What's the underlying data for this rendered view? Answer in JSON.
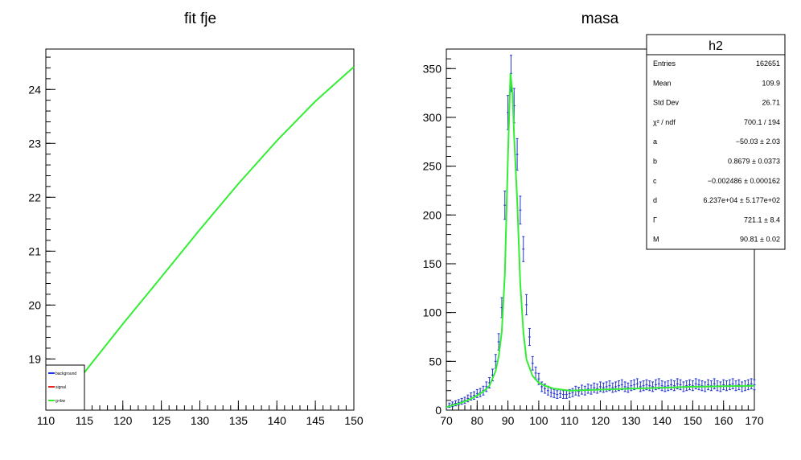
{
  "chart_data": [
    {
      "type": "line",
      "title": "fit fje",
      "xlabel": "",
      "ylabel": "",
      "xlim": [
        110,
        150
      ],
      "ylim": [
        18.05,
        24.75
      ],
      "x_ticks": [
        "110",
        "115",
        "120",
        "125",
        "130",
        "135",
        "140",
        "145",
        "150"
      ],
      "y_ticks": [
        "19",
        "20",
        "21",
        "22",
        "23",
        "24"
      ],
      "grid": false,
      "legend": {
        "position": "bottom-left",
        "entries": [
          {
            "label": "background",
            "color": "#2233ee"
          },
          {
            "label": "signal",
            "color": "#ee2222"
          },
          {
            "label": "g+bw",
            "color": "#33ee33"
          }
        ]
      },
      "series": [
        {
          "name": "g+bw",
          "color": "#33ee33",
          "x": [
            115,
            120,
            125,
            130,
            135,
            140,
            145,
            150
          ],
          "y": [
            18.75,
            19.65,
            20.52,
            21.4,
            22.25,
            23.05,
            23.78,
            24.42
          ]
        }
      ]
    },
    {
      "type": "scatter",
      "title": "masa",
      "xlabel": "",
      "ylabel": "",
      "xlim": [
        70,
        170
      ],
      "ylim": [
        0,
        370
      ],
      "x_ticks": [
        "70",
        "80",
        "90",
        "100",
        "110",
        "120",
        "130",
        "140",
        "150",
        "160",
        "170"
      ],
      "y_ticks": [
        "0",
        "50",
        "100",
        "150",
        "200",
        "250",
        "300",
        "350"
      ],
      "grid": false,
      "series": [
        {
          "name": "h2",
          "color": "#2233cc",
          "style": "error-bars",
          "x": [
            71,
            72,
            73,
            74,
            75,
            76,
            77,
            78,
            79,
            80,
            81,
            82,
            83,
            84,
            85,
            86,
            87,
            88,
            89,
            90,
            91,
            92,
            93,
            94,
            95,
            96,
            97,
            98,
            99,
            100,
            101,
            102,
            103,
            104,
            105,
            106,
            107,
            108,
            109,
            110,
            111,
            112,
            113,
            114,
            115,
            116,
            117,
            118,
            119,
            120,
            121,
            122,
            123,
            124,
            125,
            126,
            127,
            128,
            129,
            130,
            131,
            132,
            133,
            134,
            135,
            136,
            137,
            138,
            139,
            140,
            141,
            142,
            143,
            144,
            145,
            146,
            147,
            148,
            149,
            150,
            151,
            152,
            153,
            154,
            155,
            156,
            157,
            158,
            159,
            160,
            161,
            162,
            163,
            164,
            165,
            166,
            167,
            168,
            169,
            170
          ],
          "y": [
            5,
            6,
            7,
            8,
            9,
            10,
            12,
            14,
            15,
            17,
            18,
            20,
            24,
            28,
            36,
            50,
            70,
            105,
            210,
            305,
            345,
            312,
            262,
            205,
            165,
            108,
            75,
            48,
            38,
            32,
            24,
            22,
            20,
            18,
            17,
            16,
            17,
            16,
            16,
            17,
            18,
            20,
            19,
            21,
            20,
            22,
            21,
            23,
            22,
            24,
            23,
            24,
            25,
            23,
            24,
            25,
            26,
            24,
            23,
            25,
            26,
            27,
            24,
            25,
            26,
            25,
            24,
            26,
            27,
            25,
            24,
            25,
            26,
            25,
            27,
            26,
            24,
            25,
            26,
            25,
            27,
            26,
            25,
            24,
            26,
            25,
            27,
            25,
            24,
            26,
            25,
            26,
            27,
            25,
            26,
            24,
            25,
            26,
            27,
            26
          ],
          "err": [
            2.2,
            2.4,
            2.6,
            2.8,
            3,
            3.2,
            3.5,
            3.7,
            3.9,
            4.1,
            4.2,
            4.5,
            4.9,
            5.3,
            6,
            7.1,
            8.4,
            10.2,
            14.5,
            17.5,
            18.6,
            17.7,
            16.2,
            14.3,
            12.8,
            10.4,
            8.7,
            6.9,
            6.2,
            5.7,
            4.9,
            4.7,
            4.5,
            4.2,
            4.1,
            4,
            4.1,
            4,
            4,
            4.1,
            4.2,
            4.5,
            4.4,
            4.6,
            4.5,
            4.7,
            4.6,
            4.8,
            4.7,
            4.9,
            4.8,
            4.9,
            5,
            4.8,
            4.9,
            5,
            5.1,
            4.9,
            4.8,
            5,
            5.1,
            5.2,
            4.9,
            5,
            5.1,
            5,
            4.9,
            5.1,
            5.2,
            5,
            4.9,
            5,
            5.1,
            5,
            5.2,
            5.1,
            4.9,
            5,
            5.1,
            5,
            5.2,
            5.1,
            5,
            4.9,
            5.1,
            5,
            5.2,
            5,
            4.9,
            5.1,
            5,
            5.1,
            5.2,
            5,
            5.1,
            4.9,
            5,
            5.1,
            5.2,
            5.1
          ]
        },
        {
          "name": "fit",
          "color": "#33ee33",
          "style": "line",
          "x": [
            70,
            72,
            74,
            76,
            78,
            80,
            82,
            84,
            86,
            87,
            88,
            89,
            90,
            90.8,
            91.5,
            92,
            93,
            94,
            95,
            96,
            98,
            100,
            102,
            105,
            110,
            120,
            130,
            140,
            150,
            160,
            170
          ],
          "y": [
            3,
            5,
            6.5,
            9,
            11.5,
            15,
            19,
            25,
            40,
            55,
            80,
            140,
            260,
            345,
            325,
            280,
            215,
            130,
            80,
            52,
            35,
            28,
            25,
            22,
            20,
            21,
            22,
            23,
            24,
            24.5,
            25
          ]
        }
      ],
      "stats_box": {
        "title": "h2",
        "rows": [
          {
            "label": "Entries",
            "value": "162651"
          },
          {
            "label": "Mean",
            "value": "109.9"
          },
          {
            "label": "Std Dev",
            "value": "26.71"
          },
          {
            "label": "χ² / ndf",
            "value": "700.1 / 194"
          },
          {
            "label": "a",
            "value": "−50.03 ± 2.03"
          },
          {
            "label": "b",
            "value": "0.8679 ± 0.0373"
          },
          {
            "label": "c",
            "value": "−0.002486 ± 0.000162"
          },
          {
            "label": "d",
            "value": "6.237e+04 ± 5.177e+02"
          },
          {
            "label": "Γ",
            "value": "721.1 ± 8.4"
          },
          {
            "label": "M",
            "value": "90.81 ± 0.02"
          }
        ]
      }
    }
  ]
}
